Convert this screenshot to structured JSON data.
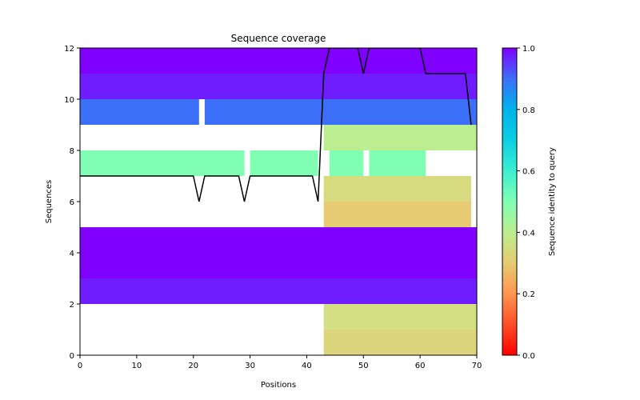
{
  "chart_data": {
    "type": "heatmap",
    "title": "Sequence coverage",
    "xlabel": "Positions",
    "ylabel": "Sequences",
    "xlim": [
      0,
      70
    ],
    "ylim": [
      0,
      12
    ],
    "xticks": [
      0,
      10,
      20,
      30,
      40,
      50,
      60,
      70
    ],
    "yticks": [
      0,
      2,
      4,
      6,
      8,
      10,
      12
    ],
    "grid": false,
    "colorbar": {
      "label": "Sequence identity to query",
      "range": [
        0.0,
        1.0
      ],
      "ticks": [
        "0.0",
        "0.2",
        "0.4",
        "0.6",
        "0.8",
        "1.0"
      ],
      "colormap": "rainbow"
    },
    "rows": [
      {
        "sequence": 0,
        "identity": 0.35,
        "color": "#DCD57B",
        "segments": [
          [
            43,
            70
          ]
        ]
      },
      {
        "sequence": 1,
        "identity": 0.38,
        "color": "#D3DF82",
        "segments": [
          [
            43,
            70
          ]
        ]
      },
      {
        "sequence": 2,
        "identity": 0.97,
        "color": "#6F1DFF",
        "segments": [
          [
            0,
            70
          ]
        ]
      },
      {
        "sequence": 3,
        "identity": 1.0,
        "color": "#7F00FF",
        "segments": [
          [
            0,
            70
          ]
        ]
      },
      {
        "sequence": 4,
        "identity": 1.0,
        "color": "#7F00FF",
        "segments": [
          [
            0,
            70
          ]
        ]
      },
      {
        "sequence": 5,
        "identity": 0.3,
        "color": "#E6CB72",
        "segments": [
          [
            43,
            69
          ]
        ]
      },
      {
        "sequence": 6,
        "identity": 0.36,
        "color": "#D7DA7E",
        "segments": [
          [
            43,
            69
          ]
        ]
      },
      {
        "sequence": 7,
        "identity": 0.5,
        "color": "#80FFB4",
        "segments": [
          [
            0,
            29
          ],
          [
            30,
            42
          ],
          [
            44,
            50
          ],
          [
            51,
            61
          ]
        ]
      },
      {
        "sequence": 8,
        "identity": 0.42,
        "color": "#BCEE90",
        "segments": [
          [
            43,
            70
          ]
        ]
      },
      {
        "sequence": 9,
        "identity": 0.85,
        "color": "#3B6FF8",
        "segments": [
          [
            0,
            21
          ],
          [
            22,
            70
          ]
        ]
      },
      {
        "sequence": 10,
        "identity": 0.97,
        "color": "#6F1DFF",
        "segments": [
          [
            0,
            70
          ]
        ]
      },
      {
        "sequence": 11,
        "identity": 1.0,
        "color": "#7F00FF",
        "segments": [
          [
            0,
            70
          ]
        ]
      }
    ],
    "coverage_line": {
      "color": "#000000",
      "x": [
        0,
        1,
        2,
        3,
        4,
        5,
        6,
        7,
        8,
        9,
        10,
        11,
        12,
        13,
        14,
        15,
        16,
        17,
        18,
        19,
        20,
        21,
        22,
        23,
        24,
        25,
        26,
        27,
        28,
        29,
        30,
        31,
        32,
        33,
        34,
        35,
        36,
        37,
        38,
        39,
        40,
        41,
        42,
        43,
        44,
        45,
        46,
        47,
        48,
        49,
        50,
        51,
        52,
        53,
        54,
        55,
        56,
        57,
        58,
        59,
        60,
        61,
        62,
        63,
        64,
        65,
        66,
        67,
        68,
        69
      ],
      "y": [
        7,
        7,
        7,
        7,
        7,
        7,
        7,
        7,
        7,
        7,
        7,
        7,
        7,
        7,
        7,
        7,
        7,
        7,
        7,
        7,
        7,
        6,
        7,
        7,
        7,
        7,
        7,
        7,
        7,
        6,
        7,
        7,
        7,
        7,
        7,
        7,
        7,
        7,
        7,
        7,
        7,
        7,
        6,
        11,
        12,
        12,
        12,
        12,
        12,
        12,
        11,
        12,
        12,
        12,
        12,
        12,
        12,
        12,
        12,
        12,
        12,
        11,
        11,
        11,
        11,
        11,
        11,
        11,
        11,
        9
      ]
    }
  }
}
